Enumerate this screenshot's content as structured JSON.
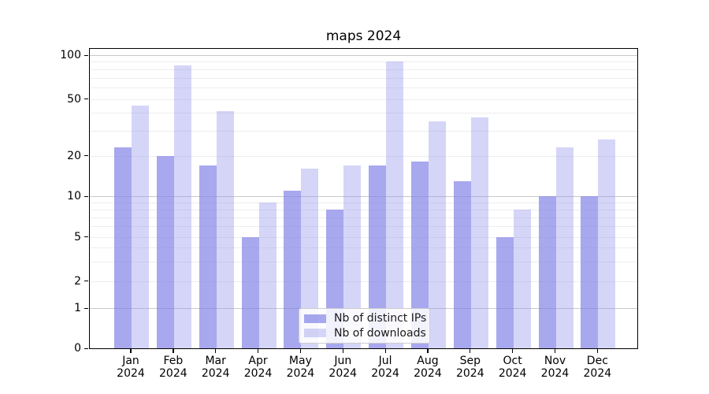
{
  "title": "maps 2024",
  "chart_data": {
    "type": "bar",
    "title": "maps 2024",
    "categories": [
      "Jan",
      "Feb",
      "Mar",
      "Apr",
      "May",
      "Jun",
      "Jul",
      "Aug",
      "Sep",
      "Oct",
      "Nov",
      "Dec"
    ],
    "year_label": "2024",
    "series": [
      {
        "name": "Nb of distinct IPs",
        "color": "rgba(131,131,231,0.7)",
        "values": [
          23,
          20,
          17,
          5,
          11,
          8,
          17,
          18,
          13,
          5,
          10,
          10
        ]
      },
      {
        "name": "Nb of downloads",
        "color": "rgba(150,150,235,0.4)",
        "values": [
          45,
          85,
          41,
          9,
          16,
          17,
          91,
          35,
          37,
          8,
          23,
          26
        ]
      }
    ],
    "xlabel": "",
    "ylabel": "",
    "yscale": "log-like (0,1,2,5,10,20,50,100)",
    "yticks": [
      100,
      50,
      20,
      10,
      5,
      2,
      1,
      0
    ],
    "grid": {
      "major": [
        100,
        10,
        1
      ],
      "minor": [
        90,
        80,
        70,
        60,
        50,
        40,
        30,
        20,
        9,
        8,
        7,
        6,
        5,
        4,
        3,
        2
      ]
    },
    "ylim": [
      0,
      110
    ],
    "legend_position": "lower center",
    "legend_labels": [
      "Nb of distinct IPs",
      "Nb of downloads"
    ]
  }
}
